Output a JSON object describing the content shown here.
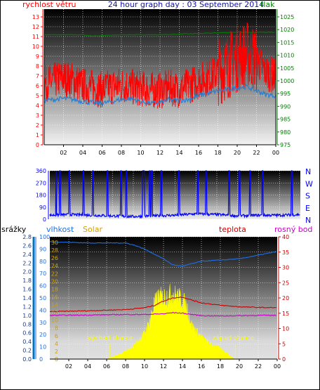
{
  "header": {
    "left_label": "rychlost větru",
    "title": "24 hour graph day : 03 September 2014",
    "right_label": "tlak"
  },
  "colors": {
    "wind": "#ff0000",
    "wind_avg": "#2a7fd0",
    "pressure": "#008000",
    "direction": "#0000ff",
    "humidity": "#1e6ee6",
    "solar": "#ffff00",
    "temperature": "#cc0000",
    "dew_point": "#cc00cc",
    "rain": "#0070c0",
    "solar_label": "#d4a000",
    "grid": "#ffffff"
  },
  "chart_data": [
    {
      "type": "line",
      "name": "wind-pressure",
      "x_ticks": [
        "02",
        "04",
        "06",
        "08",
        "10",
        "12",
        "14",
        "16",
        "18",
        "20",
        "22",
        "00"
      ],
      "x_range": [
        0,
        24
      ],
      "left_axis": {
        "label": "rychlost větru",
        "ylim": [
          0,
          13
        ],
        "ticks": [
          0,
          1,
          2,
          3,
          4,
          5,
          6,
          7,
          8,
          9,
          10,
          11,
          12,
          13
        ]
      },
      "right_axis": {
        "label": "tlak",
        "ylim": [
          975,
          1025
        ],
        "ticks": [
          975,
          980,
          985,
          990,
          995,
          1000,
          1005,
          1010,
          1015,
          1020,
          1025
        ]
      },
      "series": [
        {
          "name": "rychlost větru",
          "axis": "left",
          "x": [
            0,
            1,
            2,
            3,
            4,
            5,
            6,
            7,
            8,
            9,
            10,
            11,
            12,
            13,
            14,
            15,
            16,
            17,
            18,
            19,
            20,
            21,
            22,
            23,
            24
          ],
          "y": [
            6.2,
            6.5,
            6.8,
            6.5,
            6.0,
            5.8,
            5.6,
            5.9,
            6.1,
            5.9,
            5.7,
            5.6,
            5.5,
            5.8,
            5.6,
            6.0,
            6.5,
            6.8,
            7.4,
            8.0,
            8.8,
            9.2,
            8.6,
            7.4,
            6.9
          ]
        },
        {
          "name": "wind avg",
          "axis": "left",
          "x": [
            0,
            1,
            2,
            3,
            4,
            5,
            6,
            7,
            8,
            9,
            10,
            11,
            12,
            13,
            14,
            15,
            16,
            17,
            18,
            19,
            20,
            21,
            22,
            23,
            24
          ],
          "y": [
            4.5,
            4.6,
            4.7,
            4.6,
            4.4,
            4.3,
            4.2,
            4.4,
            4.6,
            4.7,
            4.4,
            4.2,
            4.3,
            4.6,
            4.5,
            4.6,
            5.0,
            5.2,
            5.5,
            5.6,
            5.8,
            5.9,
            5.5,
            5.1,
            5.0
          ]
        },
        {
          "name": "tlak",
          "axis": "right",
          "x": [
            0,
            4,
            5,
            8,
            12,
            16,
            20,
            24
          ],
          "y": [
            1018,
            1018,
            1017.5,
            1018,
            1018,
            1018.5,
            1019,
            1019
          ]
        }
      ]
    },
    {
      "type": "line",
      "name": "wind-direction",
      "y_ticks": [
        0,
        90,
        180,
        270,
        360
      ],
      "ylim": [
        0,
        360
      ],
      "right_labels": [
        "N",
        "W",
        "S",
        "E",
        "N"
      ],
      "series": [
        {
          "name": "wind direction",
          "x": [
            0,
            2,
            4,
            6,
            8,
            10,
            12,
            14,
            16,
            18,
            20,
            22,
            24
          ],
          "y": [
            30,
            35,
            30,
            25,
            20,
            25,
            30,
            40,
            35,
            25,
            30,
            30,
            35
          ]
        }
      ]
    },
    {
      "type": "line",
      "name": "humidity-solar-temp",
      "x_ticks": [
        "02",
        "04",
        "06",
        "08",
        "10",
        "12",
        "14",
        "16",
        "18",
        "20",
        "22",
        "00"
      ],
      "rain_axis": {
        "label": "srážky",
        "ticks": [
          0,
          0.2,
          0.4,
          0.6,
          0.8,
          1.0,
          1.2,
          1.4,
          1.6,
          1.8,
          2.0,
          2.2,
          2.4,
          2.6,
          2.8
        ]
      },
      "humidity_axis": {
        "label": "vlhkost",
        "ticks": [
          0,
          10,
          20,
          30,
          40,
          50,
          60,
          70,
          80,
          90,
          100
        ]
      },
      "solar_axis": {
        "label": "Solar",
        "ticks": [
          0,
          2,
          4,
          6,
          8,
          10,
          12,
          14,
          16,
          18,
          20,
          22,
          24,
          26,
          28,
          30
        ]
      },
      "temp_axis": {
        "label": "teplota",
        "ylim": [
          0,
          40
        ],
        "ticks": [
          0,
          5,
          10,
          15,
          20,
          25,
          30,
          35,
          40
        ]
      },
      "dew_label": "rosný bod",
      "annotations": [
        "východ slunce",
        "západ slunce"
      ],
      "series": [
        {
          "name": "vlhkost",
          "x": [
            0,
            4,
            8,
            9,
            10,
            11,
            12,
            13,
            14,
            15,
            16,
            18,
            20,
            22,
            24
          ],
          "y": [
            96,
            95,
            95,
            93,
            90,
            86,
            82,
            77,
            76,
            78,
            80,
            81,
            82,
            85,
            88
          ]
        },
        {
          "name": "teplota",
          "x": [
            0,
            4,
            8,
            10,
            11,
            12,
            13,
            14,
            15,
            16,
            18,
            20,
            22,
            24
          ],
          "y": [
            15.5,
            15.8,
            16.2,
            16.8,
            17.5,
            19,
            20,
            20.3,
            19.3,
            18.4,
            17.6,
            17.1,
            16.9,
            16.8
          ]
        },
        {
          "name": "rosný bod",
          "x": [
            0,
            4,
            8,
            10,
            12,
            13,
            14,
            15,
            16,
            18,
            20,
            22,
            24
          ],
          "y": [
            14.3,
            14.4,
            14.6,
            14.6,
            14.8,
            15.2,
            15.0,
            14.6,
            14.2,
            14.1,
            14.2,
            14.3,
            14.3
          ]
        },
        {
          "name": "Solar",
          "x": [
            6,
            7,
            8,
            9,
            10,
            10.5,
            11,
            11.5,
            12,
            12.5,
            13,
            13.5,
            14,
            14.5,
            15,
            16,
            17,
            18,
            19,
            19.5
          ],
          "y": [
            0,
            1,
            2,
            4,
            7,
            10,
            15,
            17,
            17,
            17.5,
            18,
            17,
            16.5,
            14,
            9,
            6,
            4,
            3,
            1,
            0
          ]
        }
      ]
    }
  ]
}
